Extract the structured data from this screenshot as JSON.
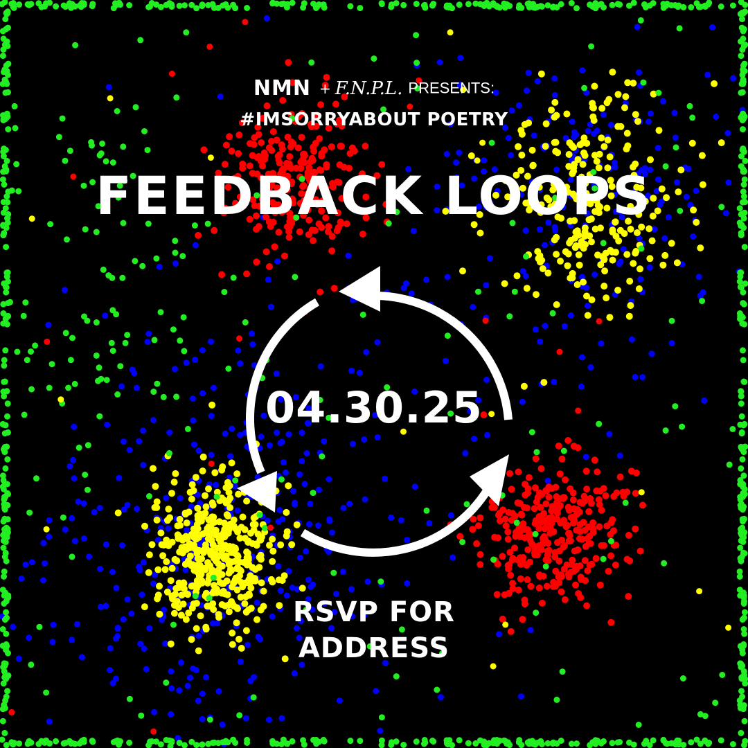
{
  "header": {
    "brand_primary": "NMN",
    "plus": "+",
    "brand_secondary": "F.N.P.L.",
    "presents": "PRESENTS:",
    "hashtag": "#IMSORRYABOUT POETRY"
  },
  "event": {
    "title": "FEEDBACK LOOPS",
    "date": "04.30.25",
    "rsvp_line1": "RSVP FOR",
    "rsvp_line2": "ADDRESS"
  },
  "graphic": {
    "icon": "cycle-arrows-icon"
  },
  "colors": {
    "background": "#000000",
    "text": "#ffffff",
    "dot_red": "#ff0000",
    "dot_yellow": "#ffff00",
    "dot_blue": "#0000ff",
    "dot_green": "#22ee22"
  }
}
